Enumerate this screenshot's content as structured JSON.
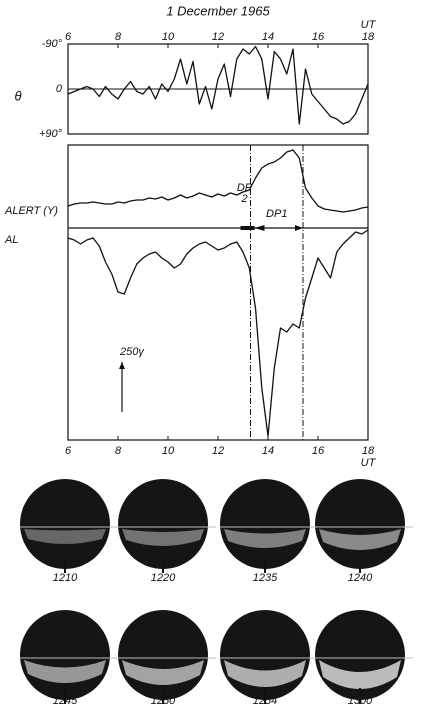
{
  "chart_data": [
    {
      "type": "line",
      "title": "1 December 1965",
      "xlabel": "UT",
      "ylabel": "θ",
      "x": [
        6,
        6.25,
        6.5,
        6.75,
        7,
        7.25,
        7.5,
        7.75,
        8,
        8.25,
        8.5,
        8.75,
        9,
        9.25,
        9.5,
        9.75,
        10,
        10.25,
        10.5,
        10.75,
        11,
        11.25,
        11.5,
        11.75,
        12,
        12.25,
        12.5,
        12.75,
        13,
        13.25,
        13.5,
        13.75,
        14,
        14.25,
        14.5,
        14.75,
        15,
        15.25,
        15.5,
        15.75,
        16,
        16.25,
        16.5,
        16.75,
        17,
        17.25,
        17.5,
        17.75,
        18
      ],
      "values": [
        10,
        5,
        0,
        -5,
        0,
        15,
        -5,
        10,
        20,
        0,
        -15,
        5,
        10,
        -5,
        20,
        -10,
        5,
        -20,
        -60,
        -10,
        -55,
        30,
        -5,
        40,
        -20,
        -50,
        15,
        -60,
        -80,
        -70,
        -85,
        -60,
        20,
        -75,
        -60,
        -30,
        -80,
        70,
        -40,
        10,
        25,
        40,
        55,
        60,
        70,
        65,
        50,
        20,
        -10
      ],
      "color": "#111111",
      "xlim": [
        6,
        18
      ],
      "xticks": [
        6,
        8,
        10,
        12,
        14,
        16,
        18
      ],
      "ylim": [
        90,
        -90
      ],
      "yticks": [
        {
          "value": -90,
          "label": "-90°"
        },
        0,
        {
          "value": 90,
          "label": "+90°"
        }
      ],
      "zero_line": true
    },
    {
      "type": "line",
      "xlabel": "UT",
      "x": [
        6,
        6.25,
        6.5,
        6.75,
        7,
        7.25,
        7.5,
        7.75,
        8,
        8.25,
        8.5,
        8.75,
        9,
        9.25,
        9.5,
        9.75,
        10,
        10.25,
        10.5,
        10.75,
        11,
        11.25,
        11.5,
        11.75,
        12,
        12.25,
        12.5,
        12.75,
        13,
        13.25,
        13.5,
        13.75,
        14,
        14.25,
        14.5,
        14.75,
        15,
        15.25,
        15.5,
        15.75,
        16,
        16.25,
        16.5,
        16.75,
        17,
        17.25,
        17.5,
        17.75,
        18
      ],
      "series": [
        {
          "name": "ALERT (Y)",
          "color": "#111111",
          "values": [
            110,
            120,
            125,
            125,
            130,
            125,
            120,
            120,
            130,
            125,
            135,
            140,
            140,
            150,
            145,
            155,
            140,
            150,
            165,
            150,
            160,
            175,
            165,
            155,
            170,
            160,
            175,
            165,
            180,
            190,
            250,
            300,
            320,
            330,
            350,
            380,
            390,
            350,
            200,
            150,
            110,
            95,
            90,
            85,
            80,
            85,
            90,
            100,
            105
          ]
        },
        {
          "name": "AL",
          "color": "#111111",
          "values": [
            -50,
            -60,
            -80,
            -60,
            -50,
            -90,
            -170,
            -230,
            -320,
            -330,
            -250,
            -180,
            -150,
            -130,
            -120,
            -150,
            -170,
            -200,
            -180,
            -130,
            -100,
            -80,
            -70,
            -90,
            -110,
            -100,
            -80,
            -70,
            -120,
            -200,
            -400,
            -800,
            -1040,
            -700,
            -500,
            -520,
            -480,
            -500,
            -350,
            -250,
            -150,
            -200,
            -250,
            -120,
            -80,
            -50,
            -20,
            -30,
            -10
          ]
        }
      ],
      "xlim": [
        6,
        18
      ],
      "xticks": [
        6,
        8,
        10,
        12,
        14,
        16,
        18
      ],
      "ylim": [
        -1060,
        415
      ],
      "vlines": [
        13.3,
        15.4
      ],
      "annotations": [
        "DP",
        "2",
        "DP1"
      ],
      "scale_bar": {
        "value": 250,
        "label": "250γ"
      }
    }
  ],
  "photos": {
    "labels": [
      "1210",
      "1220",
      "1235",
      "1240",
      "1245",
      "1250",
      "1254",
      "1300"
    ]
  }
}
